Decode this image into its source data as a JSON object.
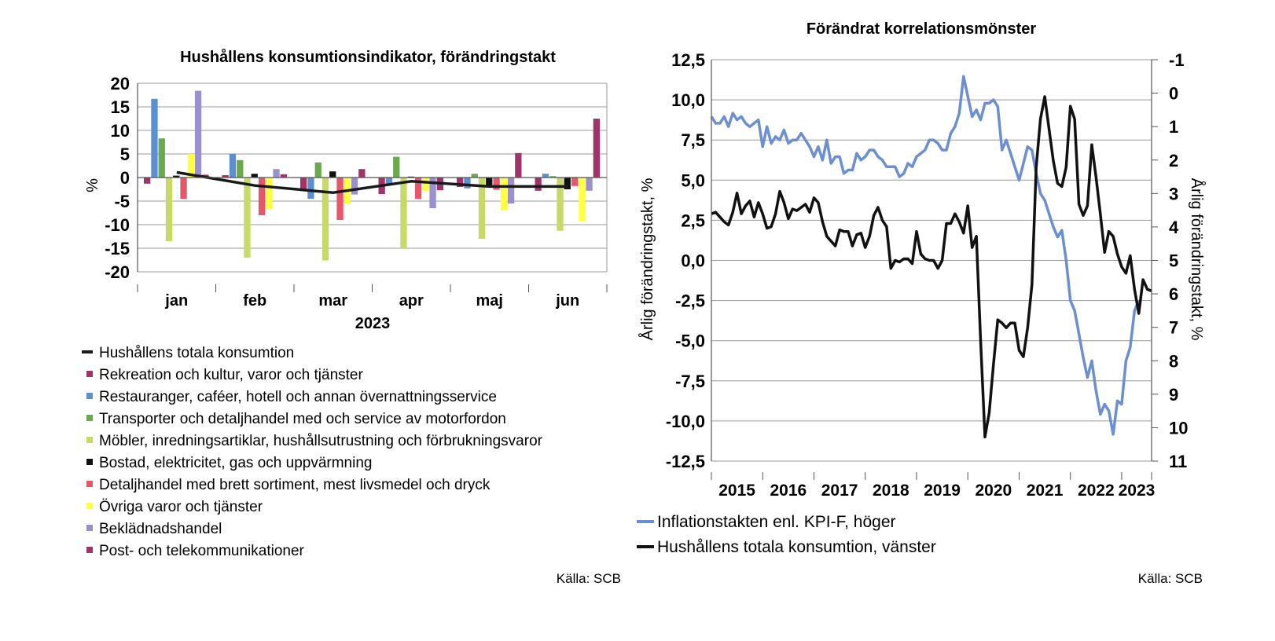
{
  "colors": {
    "total": "#1a1a1a",
    "rekreation": "#a0336a",
    "restauranger": "#5b8fcf",
    "transporter": "#6aaa4f",
    "mobler": "#c8d96a",
    "bostad": "#111111",
    "detaljhandel": "#e8566a",
    "ovriga": "#ffff44",
    "bekladnad": "#9a8fcf",
    "post": "#a0336a",
    "kpif": "#6b8fd0",
    "konsumtion": "#111111"
  },
  "chart_data": [
    {
      "type": "bar",
      "title": "Hushållens konsumtionsindikator, förändringstakt",
      "ylabel": "%",
      "xlabel": "2023",
      "ylim": [
        -20,
        20
      ],
      "yticks": [
        "20",
        "15",
        "10",
        "5",
        "0",
        "-5",
        "-10",
        "-15",
        "-20"
      ],
      "categories": [
        "jan",
        "feb",
        "mar",
        "apr",
        "maj",
        "jun"
      ],
      "grid": true,
      "legend_position": "bottom",
      "series": [
        {
          "name": "Rekreation och kultur, varor och tjänster",
          "key": "rekreation",
          "values": [
            -1.3,
            0.5,
            -2.8,
            -3.5,
            -2.0,
            -2.8
          ]
        },
        {
          "name": "Restauranger, caféer, hotell och annan övernattningsservice",
          "key": "restauranger",
          "values": [
            16.7,
            5.0,
            -4.5,
            -1.5,
            -2.3,
            0.8
          ]
        },
        {
          "name": "Transporter och detaljhandel med och service av motorfordon",
          "key": "transporter",
          "values": [
            8.3,
            3.7,
            3.2,
            4.4,
            0.8,
            0.3
          ]
        },
        {
          "name": "Möbler, inredningsartiklar, hushållsutrustning och förbrukningsvaror",
          "key": "mobler",
          "values": [
            -13.5,
            -17.0,
            -17.6,
            -15.0,
            -13.0,
            -11.3
          ]
        },
        {
          "name": "Bostad, elektricitet, gas och uppvärmning",
          "key": "bostad",
          "values": [
            0.4,
            0.8,
            1.3,
            0.2,
            -2.0,
            -2.5
          ]
        },
        {
          "name": "Detaljhandel med brett sortiment, mest livsmedel och dryck",
          "key": "detaljhandel",
          "values": [
            -4.5,
            -8.0,
            -9.0,
            -4.5,
            -2.6,
            -1.8
          ]
        },
        {
          "name": "Övriga varor och tjänster",
          "key": "ovriga",
          "values": [
            5.0,
            -6.7,
            -5.5,
            -2.8,
            -7.0,
            -9.2
          ]
        },
        {
          "name": "Beklädnadshandel",
          "key": "bekladnad",
          "values": [
            18.4,
            1.8,
            -3.6,
            -6.5,
            -5.5,
            -2.8
          ]
        },
        {
          "name": "Post- och telekommunikationer",
          "key": "post",
          "values": [
            0.6,
            0.7,
            1.8,
            -2.7,
            5.2,
            12.5
          ]
        }
      ],
      "line_series": {
        "name": "Hushållens totala konsumtion",
        "key": "total",
        "values": [
          1.1,
          -1.7,
          -3.2,
          -0.8,
          -1.9,
          -1.9
        ]
      },
      "legend_order": [
        "Hushållens totala konsumtion",
        "Rekreation och kultur, varor och tjänster",
        "Restauranger, caféer, hotell och annan övernattningsservice",
        "Transporter och detaljhandel med och service av motorfordon",
        "Möbler, inredningsartiklar, hushållsutrustning och förbrukningsvaror",
        "Bostad, elektricitet, gas och uppvärmning",
        "Detaljhandel med brett sortiment, mest livsmedel och dryck",
        "Övriga varor och tjänster",
        "Beklädnadshandel",
        "Post- och telekommunikationer"
      ],
      "source": "Källa: SCB"
    },
    {
      "type": "line",
      "title": "Förändrat korrelationsmönster",
      "ylabel_left": "Årlig förändringstakt, %",
      "ylabel_right": "Årlig förändringstakt, %",
      "ylim_left": [
        -12.5,
        12.5
      ],
      "ylim_right": [
        11,
        -1
      ],
      "yticks_left": [
        "12,5",
        "10,0",
        "7,5",
        "5,0",
        "2,5",
        "0,0",
        "-2,5",
        "-5,0",
        "-7,5",
        "-10,0",
        "-12,5"
      ],
      "yticks_right": [
        "-1",
        "0",
        "1",
        "2",
        "3",
        "4",
        "5",
        "6",
        "7",
        "8",
        "9",
        "10",
        "11"
      ],
      "xticks": [
        "2015",
        "2016",
        "2017",
        "2018",
        "2019",
        "2020",
        "2021",
        "2022",
        "2023"
      ],
      "x_start": "2015-01",
      "grid": true,
      "legend_position": "bottom",
      "series": [
        {
          "name": "Inflationstakten enl. KPI-F, höger",
          "key": "kpif",
          "axis": "right",
          "values": [
            0.7,
            0.9,
            0.9,
            0.7,
            1.0,
            0.6,
            0.8,
            0.7,
            0.9,
            1.0,
            0.9,
            0.8,
            1.6,
            1.0,
            1.5,
            1.3,
            1.4,
            1.1,
            1.5,
            1.4,
            1.4,
            1.2,
            1.4,
            1.6,
            1.9,
            1.6,
            2.0,
            1.4,
            2.1,
            1.9,
            1.9,
            2.4,
            2.3,
            2.3,
            1.8,
            2.0,
            1.9,
            1.7,
            1.7,
            1.9,
            2.0,
            2.2,
            2.2,
            2.2,
            2.5,
            2.4,
            2.1,
            2.2,
            1.9,
            1.8,
            1.7,
            1.4,
            1.4,
            1.5,
            1.7,
            1.7,
            1.2,
            1.0,
            0.6,
            -0.5,
            0.1,
            0.7,
            0.5,
            0.8,
            0.3,
            0.3,
            0.2,
            0.4,
            1.7,
            1.4,
            1.8,
            2.2,
            2.6,
            2.1,
            1.6,
            1.7,
            2.4,
            3.0,
            3.2,
            3.6,
            4.0,
            4.3,
            4.1,
            5.0,
            6.2,
            6.5,
            7.2,
            7.9,
            8.5,
            8.0,
            8.9,
            9.6,
            9.3,
            9.5,
            10.2,
            9.2,
            9.3,
            8.0,
            7.6,
            6.5,
            6.2
          ]
        },
        {
          "name": "Hushållens totala konsumtion, vänster",
          "key": "konsumtion",
          "axis": "left",
          "values": [
            2.9,
            3.0,
            2.7,
            2.4,
            2.2,
            3.0,
            4.2,
            2.9,
            3.4,
            3.7,
            2.7,
            3.6,
            2.9,
            2.0,
            2.1,
            2.9,
            4.3,
            3.6,
            2.6,
            3.2,
            3.1,
            3.3,
            3.5,
            3.0,
            3.9,
            3.6,
            2.4,
            1.5,
            1.2,
            0.9,
            1.9,
            1.8,
            1.8,
            0.9,
            1.6,
            1.7,
            0.8,
            1.5,
            2.8,
            3.3,
            2.5,
            2.1,
            -0.5,
            0.0,
            -0.1,
            0.1,
            0.1,
            -0.2,
            1.8,
            0.4,
            0.1,
            0.0,
            0.0,
            -0.5,
            0.0,
            2.3,
            2.3,
            2.9,
            2.4,
            1.7,
            3.4,
            0.8,
            1.5,
            -5.0,
            -11.0,
            -9.5,
            -6.5,
            -3.7,
            -3.9,
            -4.2,
            -3.9,
            -3.9,
            -5.6,
            -6.0,
            -4.2,
            -1.5,
            5.8,
            8.8,
            10.2,
            8.2,
            6.2,
            4.8,
            4.6,
            5.8,
            9.6,
            8.8,
            3.5,
            2.8,
            3.4,
            7.2,
            5.2,
            2.9,
            0.5,
            1.8,
            1.5,
            0.4,
            -0.4,
            -0.8,
            0.3,
            -1.8,
            -3.3,
            -1.2,
            -1.8,
            -1.9
          ]
        }
      ],
      "source": "Källa: SCB"
    }
  ]
}
